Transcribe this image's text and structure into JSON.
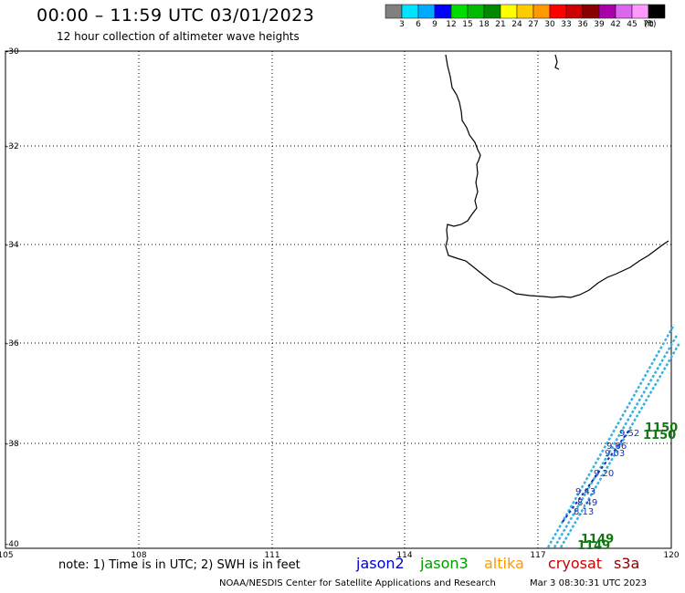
{
  "header": {
    "title": "00:00 – 11:59 UTC 03/01/2023",
    "subtitle": "12 hour collection of altimeter wave heights"
  },
  "colorbar": {
    "labels": [
      "3",
      "6",
      "9",
      "12",
      "15",
      "18",
      "21",
      "24",
      "27",
      "30",
      "33",
      "36",
      "39",
      "42",
      "45",
      "70"
    ],
    "unit": "(ft)",
    "colors": [
      "#808080",
      "#00e5ff",
      "#00aaff",
      "#0000ff",
      "#00dd00",
      "#00bb00",
      "#008800",
      "#ffff00",
      "#ffcc00",
      "#ff9900",
      "#ff0000",
      "#cc0000",
      "#880000",
      "#aa00aa",
      "#dd66ee",
      "#ff99ff",
      "#000000"
    ]
  },
  "map": {
    "lat_labels": [
      "-30",
      "-32",
      "-34",
      "-36",
      "-38",
      "-40"
    ],
    "lon_labels": [
      "105",
      "108",
      "111",
      "114",
      "117",
      "120"
    ],
    "time_labels": [
      "1150",
      "1150",
      "1149",
      "1149"
    ],
    "swh_values": [
      "9.52",
      "9.06",
      "9.03",
      "9.20",
      "9.43",
      "8.49",
      "8.13"
    ],
    "track_color": "#3ab0e0",
    "coast_color": "#000000"
  },
  "footer": {
    "note": "note: 1) Time is in UTC; 2) SWH is in feet",
    "satellites": [
      {
        "name": "jason2",
        "color": "#0000cc"
      },
      {
        "name": "jason3",
        "color": "#009900"
      },
      {
        "name": "altika",
        "color": "#ff9900"
      },
      {
        "name": "cryosat",
        "color": "#cc0000"
      },
      {
        "name": "s3a",
        "color": "#880000"
      }
    ],
    "credit": "NOAA/NESDIS Center for Satellite Applications and Research",
    "generated": "Mar  3 08:30:31 UTC 2023"
  }
}
